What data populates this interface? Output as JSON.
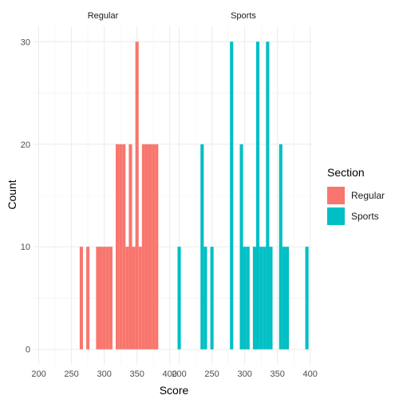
{
  "chart_data": {
    "type": "bar",
    "title": "",
    "xlabel": "Score",
    "ylabel": "Count",
    "xlim": [
      192,
      404
    ],
    "ylim": [
      -1.5,
      31.5
    ],
    "x_ticks": [
      200,
      250,
      300,
      350,
      400
    ],
    "y_ticks": [
      0,
      10,
      20,
      30
    ],
    "bin_width": 5,
    "grid": true,
    "legend_placement": "right",
    "legend_title": "Section",
    "facets": [
      {
        "name": "Regular",
        "color": "#F8766D",
        "bars": [
          {
            "x": 265,
            "y": 10
          },
          {
            "x": 275,
            "y": 10
          },
          {
            "x": 290,
            "y": 10
          },
          {
            "x": 295,
            "y": 10
          },
          {
            "x": 300,
            "y": 10
          },
          {
            "x": 305,
            "y": 10
          },
          {
            "x": 310,
            "y": 10
          },
          {
            "x": 320,
            "y": 20
          },
          {
            "x": 325,
            "y": 20
          },
          {
            "x": 330,
            "y": 20
          },
          {
            "x": 335,
            "y": 10
          },
          {
            "x": 340,
            "y": 20
          },
          {
            "x": 345,
            "y": 10
          },
          {
            "x": 350,
            "y": 30
          },
          {
            "x": 355,
            "y": 10
          },
          {
            "x": 360,
            "y": 20
          },
          {
            "x": 365,
            "y": 20
          },
          {
            "x": 370,
            "y": 20
          },
          {
            "x": 375,
            "y": 20
          },
          {
            "x": 380,
            "y": 20
          }
        ]
      },
      {
        "name": "Sports",
        "color": "#00BFC4",
        "bars": [
          {
            "x": 200,
            "y": 10
          },
          {
            "x": 235,
            "y": 20
          },
          {
            "x": 240,
            "y": 10
          },
          {
            "x": 250,
            "y": 10
          },
          {
            "x": 280,
            "y": 30
          },
          {
            "x": 295,
            "y": 20
          },
          {
            "x": 300,
            "y": 10
          },
          {
            "x": 305,
            "y": 10
          },
          {
            "x": 315,
            "y": 10
          },
          {
            "x": 320,
            "y": 30
          },
          {
            "x": 325,
            "y": 10
          },
          {
            "x": 330,
            "y": 10
          },
          {
            "x": 335,
            "y": 30
          },
          {
            "x": 340,
            "y": 10
          },
          {
            "x": 355,
            "y": 20
          },
          {
            "x": 360,
            "y": 10
          },
          {
            "x": 365,
            "y": 10
          },
          {
            "x": 395,
            "y": 10
          }
        ]
      }
    ]
  }
}
